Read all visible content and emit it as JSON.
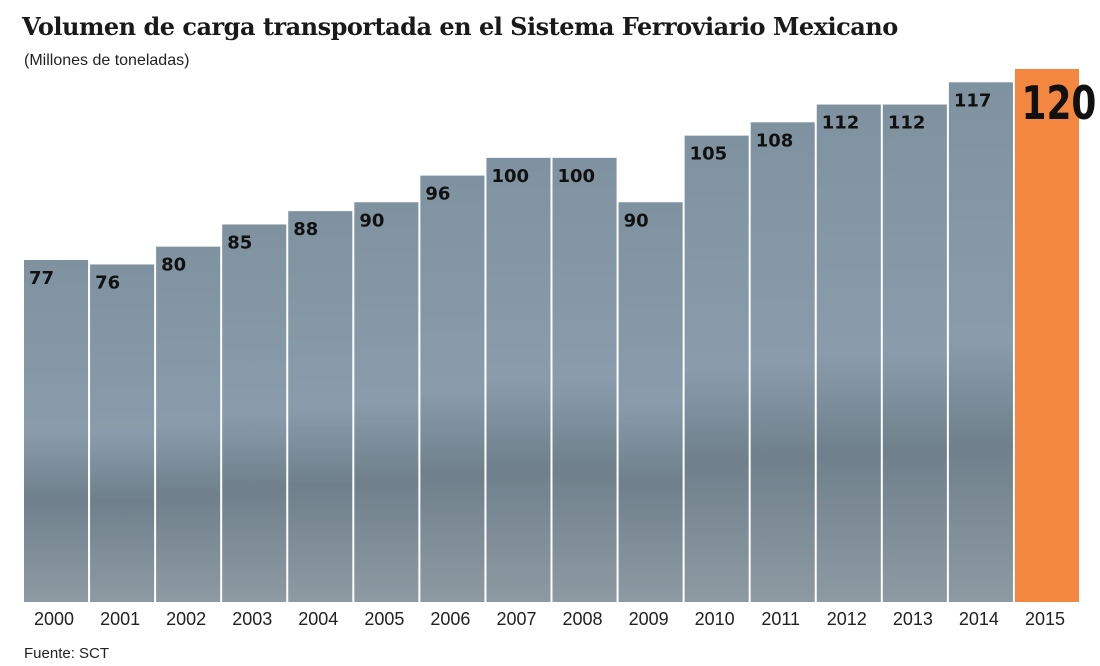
{
  "chart_data": {
    "type": "bar",
    "title": "Volumen de carga transportada en el Sistema Ferroviario Mexicano",
    "subtitle": "(Millones de toneladas)",
    "source": "Fuente: SCT",
    "categories": [
      "2000",
      "2001",
      "2002",
      "2003",
      "2004",
      "2005",
      "2006",
      "2007",
      "2008",
      "2009",
      "2010",
      "2011",
      "2012",
      "2013",
      "2014",
      "2015"
    ],
    "values": [
      77,
      76,
      80,
      85,
      88,
      90,
      96,
      100,
      100,
      90,
      105,
      108,
      112,
      112,
      117,
      120
    ],
    "ylim": [
      0,
      120
    ],
    "grid": false,
    "colors": {
      "bar": "#7d909e",
      "highlight": "#f4873f",
      "label": "#111111"
    },
    "highlight_category": "2015"
  }
}
